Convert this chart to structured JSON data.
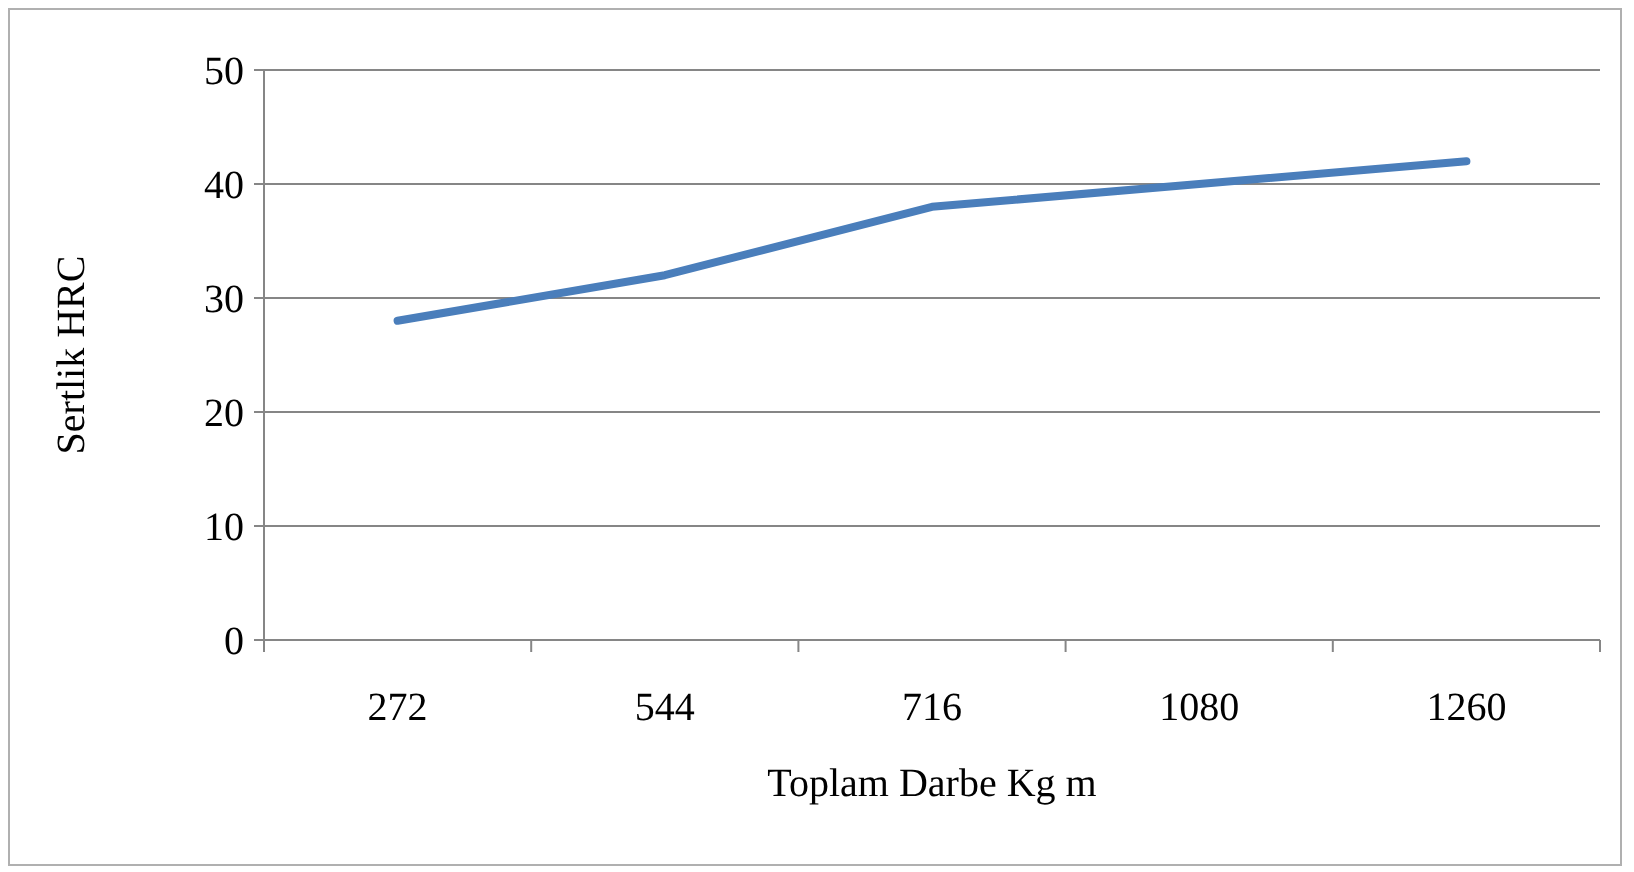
{
  "chart_data": {
    "type": "line",
    "xlabel": "Toplam Darbe Kg m",
    "ylabel": "Sertlik HRC",
    "categories": [
      "272",
      "544",
      "716",
      "1080",
      "1260"
    ],
    "series": [
      {
        "color": "#4a7ebb",
        "values": [
          28,
          32,
          38,
          40,
          42
        ]
      }
    ],
    "ylim": [
      0,
      50
    ],
    "yticks": [
      0,
      10,
      20,
      30,
      40,
      50
    ],
    "grid": "y",
    "marker": "none",
    "line_style": "solid"
  }
}
